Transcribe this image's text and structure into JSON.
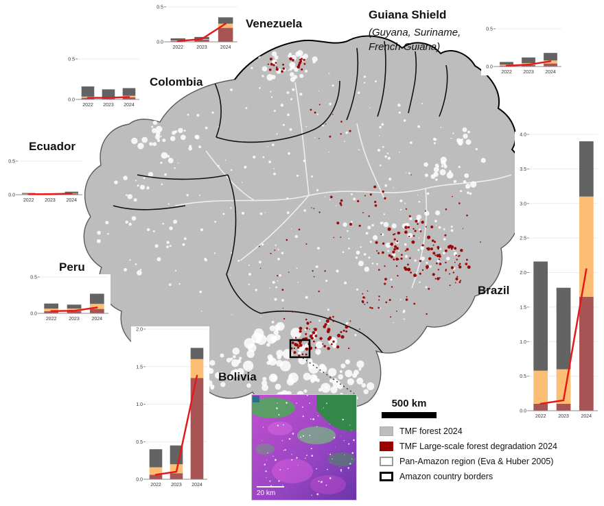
{
  "chart_colors": {
    "darkred": "#a85454",
    "orange": "#fcbd75",
    "gray": "#636363",
    "line": "#e31a1c"
  },
  "map": {
    "forest_color": "#bdbdbd",
    "degradation_color": "#990000"
  },
  "scale_bar": {
    "label": "500 km"
  },
  "inset": {
    "scale_label": "20 km"
  },
  "guiana": {
    "subtitle": "(Guyana, Suriname, French Guiana)"
  },
  "legend": {
    "items": [
      {
        "label": "TMF forest 2024",
        "fill": "#bdbdbd",
        "border": "1px solid #ababab"
      },
      {
        "label": "TMF Large-scale forest degradation 2024",
        "fill": "#990000",
        "border": "1px solid #990000"
      },
      {
        "label": "Pan-Amazon region (Eva & Huber 2005)",
        "fill": "#ffffff",
        "border": "2px solid #999999"
      },
      {
        "label": "Amazon country borders",
        "fill": "#ffffff",
        "border": "3px solid #000000"
      }
    ]
  },
  "chart_data": [
    {
      "type": "bar",
      "title": "Venezuela",
      "categories": [
        "2022",
        "2023",
        "2024"
      ],
      "ylim": [
        0,
        0.5
      ],
      "yticks": [
        0,
        0.5
      ],
      "series": [
        {
          "name": "series-darkred",
          "color_key": "darkred",
          "values": [
            0.01,
            0.03,
            0.2
          ]
        },
        {
          "name": "series-orange",
          "color_key": "orange",
          "values": [
            0.01,
            0.01,
            0.06
          ]
        },
        {
          "name": "series-gray",
          "color_key": "gray",
          "values": [
            0.03,
            0.03,
            0.09
          ]
        }
      ],
      "line": {
        "name": "red-trend-line",
        "values": [
          0.01,
          0.04,
          0.26
        ]
      }
    },
    {
      "type": "bar",
      "title": "Colombia",
      "categories": [
        "2022",
        "2023",
        "2024"
      ],
      "ylim": [
        0,
        0.5
      ],
      "yticks": [
        0,
        0.5
      ],
      "series": [
        {
          "name": "series-darkred",
          "color_key": "darkred",
          "values": [
            0.02,
            0.015,
            0.025
          ]
        },
        {
          "name": "series-orange",
          "color_key": "orange",
          "values": [
            0.015,
            0.015,
            0.02
          ]
        },
        {
          "name": "series-gray",
          "color_key": "gray",
          "values": [
            0.125,
            0.095,
            0.095
          ]
        }
      ],
      "line": {
        "name": "red-trend-line",
        "values": [
          0.02,
          0.02,
          0.03
        ]
      }
    },
    {
      "type": "bar",
      "title": "Ecuador",
      "categories": [
        "2022",
        "2023",
        "2024"
      ],
      "ylim": [
        0,
        0.5
      ],
      "yticks": [
        0,
        0.5
      ],
      "series": [
        {
          "name": "series-darkred",
          "color_key": "darkred",
          "values": [
            0.008,
            0.008,
            0.015
          ]
        },
        {
          "name": "series-orange",
          "color_key": "orange",
          "values": [
            0.005,
            0.004,
            0.008
          ]
        },
        {
          "name": "series-gray",
          "color_key": "gray",
          "values": [
            0.012,
            0.01,
            0.022
          ]
        }
      ],
      "line": {
        "name": "red-trend-line",
        "values": [
          0.008,
          0.008,
          0.018
        ]
      }
    },
    {
      "type": "bar",
      "title": "Peru",
      "categories": [
        "2022",
        "2023",
        "2024"
      ],
      "ylim": [
        0,
        0.5
      ],
      "yticks": [
        0,
        0.5
      ],
      "series": [
        {
          "name": "series-darkred",
          "color_key": "darkred",
          "values": [
            0.03,
            0.03,
            0.06
          ]
        },
        {
          "name": "series-orange",
          "color_key": "orange",
          "values": [
            0.035,
            0.035,
            0.07
          ]
        },
        {
          "name": "series-gray",
          "color_key": "gray",
          "values": [
            0.07,
            0.055,
            0.14
          ]
        }
      ],
      "line": {
        "name": "red-trend-line",
        "values": [
          0.03,
          0.035,
          0.08
        ]
      }
    },
    {
      "type": "bar",
      "title": "Bolivia",
      "categories": [
        "2022",
        "2023",
        "2024"
      ],
      "ylim": [
        0,
        2.0
      ],
      "yticks": [
        0,
        0.5,
        1.0,
        1.5,
        2.0
      ],
      "series": [
        {
          "name": "series-darkred",
          "color_key": "darkred",
          "values": [
            0.06,
            0.08,
            1.35
          ]
        },
        {
          "name": "series-orange",
          "color_key": "orange",
          "values": [
            0.1,
            0.12,
            0.25
          ]
        },
        {
          "name": "series-gray",
          "color_key": "gray",
          "values": [
            0.24,
            0.25,
            0.15
          ]
        }
      ],
      "line": {
        "name": "red-trend-line",
        "values": [
          0.06,
          0.1,
          1.38
        ]
      }
    },
    {
      "type": "bar",
      "title": "Brazil",
      "categories": [
        "2022",
        "2023",
        "2024"
      ],
      "ylim": [
        0,
        4.0
      ],
      "yticks": [
        0,
        0.5,
        1.0,
        1.5,
        2.0,
        2.5,
        3.0,
        3.5,
        4.0
      ],
      "series": [
        {
          "name": "series-darkred",
          "color_key": "darkred",
          "values": [
            0.1,
            0.1,
            1.65
          ]
        },
        {
          "name": "series-orange",
          "color_key": "orange",
          "values": [
            0.48,
            0.5,
            1.45
          ]
        },
        {
          "name": "series-gray",
          "color_key": "gray",
          "values": [
            1.58,
            1.18,
            0.8
          ]
        }
      ],
      "line": {
        "name": "red-trend-line",
        "values": [
          0.1,
          0.15,
          2.05
        ]
      }
    },
    {
      "type": "bar",
      "title": "Guiana Shield",
      "categories": [
        "2022",
        "2023",
        "2024"
      ],
      "ylim": [
        0,
        0.5
      ],
      "yticks": [
        0,
        0.5
      ],
      "series": [
        {
          "name": "series-darkred",
          "color_key": "darkred",
          "values": [
            0.012,
            0.02,
            0.04
          ]
        },
        {
          "name": "series-orange",
          "color_key": "orange",
          "values": [
            0.013,
            0.025,
            0.04
          ]
        },
        {
          "name": "series-gray",
          "color_key": "gray",
          "values": [
            0.035,
            0.075,
            0.1
          ]
        }
      ],
      "line": {
        "name": "red-trend-line",
        "values": [
          0.01,
          0.025,
          0.07
        ]
      }
    }
  ]
}
